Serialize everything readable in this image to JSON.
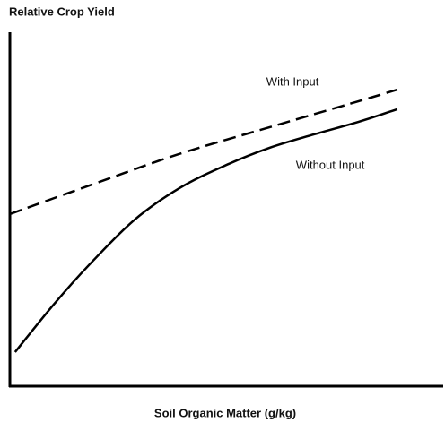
{
  "chart_data": {
    "type": "line",
    "title": "Relative Crop Yield",
    "x_label": "Soil Organic Matter (g/kg)",
    "xlim": [
      0,
      100
    ],
    "ylim": [
      0,
      100
    ],
    "series": [
      {
        "name": "With Input",
        "color": "#000000",
        "dashed": true,
        "x": [
          0,
          18.4,
          39.1,
          59.8,
          80.5,
          89.4
        ],
        "values": [
          49,
          57.2,
          66.2,
          73.8,
          81.3,
          84.6
        ]
      },
      {
        "name": "Without Input",
        "color": "#000000",
        "dashed": false,
        "x": [
          1.2,
          10.1,
          18.4,
          28.8,
          39.1,
          49.5,
          59.8,
          70.2,
          80.5,
          89.4
        ],
        "values": [
          9.5,
          23.1,
          34.6,
          47.4,
          56.4,
          62.8,
          67.9,
          71.8,
          75.4,
          79
        ]
      }
    ]
  }
}
